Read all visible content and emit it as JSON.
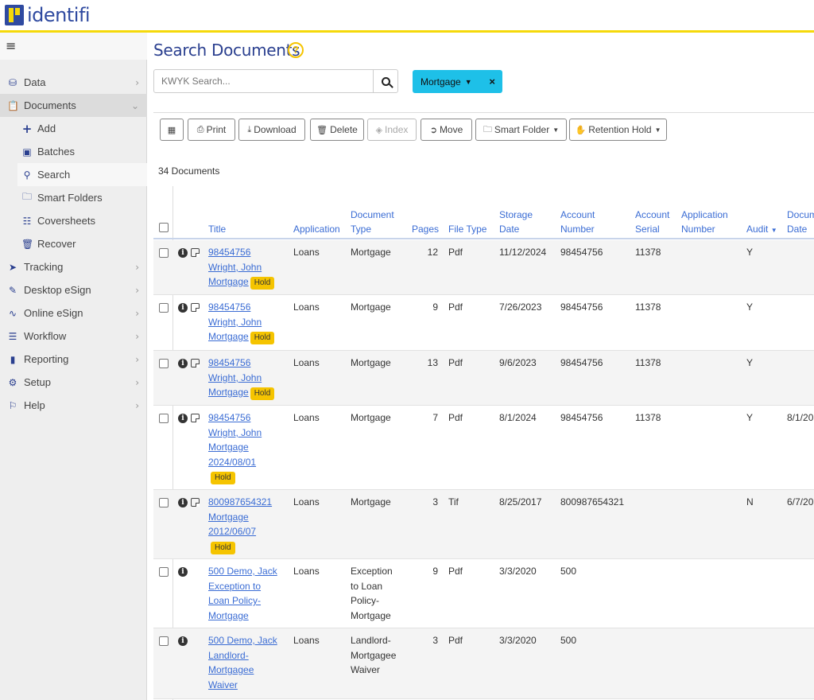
{
  "brand": {
    "name": "identifi"
  },
  "sidebar": {
    "items": [
      {
        "label": "Data",
        "icon": "database-icon"
      },
      {
        "label": "Documents",
        "icon": "clipboard-icon"
      },
      {
        "label": "Add",
        "icon": "plus-icon"
      },
      {
        "label": "Batches",
        "icon": "archive-icon"
      },
      {
        "label": "Search",
        "icon": "search-icon"
      },
      {
        "label": "Smart Folders",
        "icon": "folder-icon"
      },
      {
        "label": "Coversheets",
        "icon": "barcode-icon"
      },
      {
        "label": "Recover",
        "icon": "trash-icon"
      },
      {
        "label": "Tracking",
        "icon": "location-arrow-icon"
      },
      {
        "label": "Desktop eSign",
        "icon": "pen-icon"
      },
      {
        "label": "Online eSign",
        "icon": "signature-icon"
      },
      {
        "label": "Workflow",
        "icon": "sitemap-icon"
      },
      {
        "label": "Reporting",
        "icon": "file-icon"
      },
      {
        "label": "Setup",
        "icon": "gear-icon"
      },
      {
        "label": "Help",
        "icon": "flag-icon"
      }
    ]
  },
  "main": {
    "title": "Search Documents",
    "help": "?",
    "search_placeholder": "KWYK Search...",
    "filter_label": "Mortgage",
    "filter_close": "×",
    "toolbar": {
      "print": "Print",
      "download": "Download",
      "delete": "Delete",
      "index": "Index",
      "move": "Move",
      "smart_folder": "Smart Folder",
      "retention_hold": "Retention Hold"
    },
    "doc_count": "34 Documents"
  },
  "table": {
    "headers": {
      "title": "Title",
      "application": "Application",
      "document_type_1": "Document",
      "document_type_2": "Type",
      "pages": "Pages",
      "file_type": "File Type",
      "storage_date_1": "Storage",
      "storage_date_2": "Date",
      "account_number_1": "Account",
      "account_number_2": "Number",
      "account_serial_1": "Account",
      "account_serial_2": "Serial",
      "application_number_1": "Application",
      "application_number_2": "Number",
      "audit": "Audit",
      "document_date_1": "Document",
      "document_date_2": "Date"
    },
    "hold_label": "Hold",
    "rows": [
      {
        "title": [
          "98454756",
          "Wright, John",
          "Mortgage"
        ],
        "application": "Loans",
        "doctype": [
          "Mortgage"
        ],
        "pages": "12",
        "filetype": "Pdf",
        "storage": "11/12/2024",
        "account": "98454756",
        "serial": "11378",
        "audit": "Y",
        "docdate": ""
      },
      {
        "title": [
          "98454756",
          "Wright, John",
          "Mortgage"
        ],
        "application": "Loans",
        "doctype": [
          "Mortgage"
        ],
        "pages": "9",
        "filetype": "Pdf",
        "storage": "7/26/2023",
        "account": "98454756",
        "serial": "11378",
        "audit": "Y",
        "docdate": ""
      },
      {
        "title": [
          "98454756",
          "Wright, John",
          "Mortgage"
        ],
        "application": "Loans",
        "doctype": [
          "Mortgage"
        ],
        "pages": "13",
        "filetype": "Pdf",
        "storage": "9/6/2023",
        "account": "98454756",
        "serial": "11378",
        "audit": "Y",
        "docdate": ""
      },
      {
        "title": [
          "98454756",
          "Wright, John",
          "Mortgage",
          "2024/08/01"
        ],
        "application": "Loans",
        "doctype": [
          "Mortgage"
        ],
        "pages": "7",
        "filetype": "Pdf",
        "storage": "8/1/2024",
        "account": "98454756",
        "serial": "11378",
        "audit": "Y",
        "docdate": "8/1/20"
      },
      {
        "title": [
          "800987654321",
          "Mortgage",
          "2012/06/07"
        ],
        "application": "Loans",
        "doctype": [
          "Mortgage"
        ],
        "pages": "3",
        "filetype": "Tif",
        "storage": "8/25/2017",
        "account": "800987654321",
        "serial": "",
        "audit": "N",
        "docdate": "6/7/20"
      },
      {
        "title": [
          "500 Demo, Jack",
          "Exception to",
          "Loan Policy-",
          "Mortgage"
        ],
        "application": "Loans",
        "doctype": [
          "Exception",
          "to Loan",
          "Policy-",
          "Mortgage"
        ],
        "pages": "9",
        "filetype": "Pdf",
        "storage": "3/3/2020",
        "account": "500",
        "serial": "",
        "audit": "",
        "docdate": ""
      },
      {
        "title": [
          "500 Demo, Jack",
          "Landlord-",
          "Mortgagee",
          "Waiver"
        ],
        "application": "Loans",
        "doctype": [
          "Landlord-",
          "Mortgagee",
          "Waiver"
        ],
        "pages": "3",
        "filetype": "Pdf",
        "storage": "3/3/2020",
        "account": "500",
        "serial": "",
        "audit": "",
        "docdate": ""
      }
    ]
  }
}
